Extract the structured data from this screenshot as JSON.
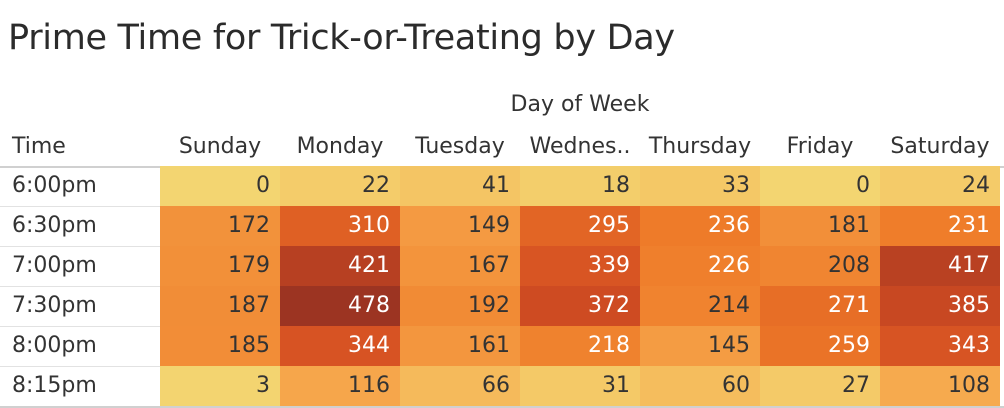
{
  "chart_data": {
    "type": "heatmap",
    "title": "Prime Time for Trick-or-Treating by Day",
    "column_group_label": "Day of Week",
    "row_header": "Time",
    "columns": [
      "Sunday",
      "Monday",
      "Tuesday",
      "Wednes..",
      "Thursday",
      "Friday",
      "Saturday"
    ],
    "rows": [
      "6:00pm",
      "6:30pm",
      "7:00pm",
      "7:30pm",
      "8:00pm",
      "8:15pm"
    ],
    "values": [
      [
        0,
        22,
        41,
        18,
        33,
        0,
        24
      ],
      [
        172,
        310,
        149,
        295,
        236,
        181,
        231
      ],
      [
        179,
        421,
        167,
        339,
        226,
        208,
        417
      ],
      [
        187,
        478,
        192,
        372,
        214,
        271,
        385
      ],
      [
        185,
        344,
        161,
        218,
        145,
        259,
        343
      ],
      [
        3,
        116,
        66,
        31,
        60,
        27,
        108
      ]
    ],
    "color_scale": [
      "#f3d571",
      "#f6a54a",
      "#ee7a28",
      "#d44e22",
      "#9c3422"
    ],
    "value_range": [
      0,
      478
    ]
  }
}
